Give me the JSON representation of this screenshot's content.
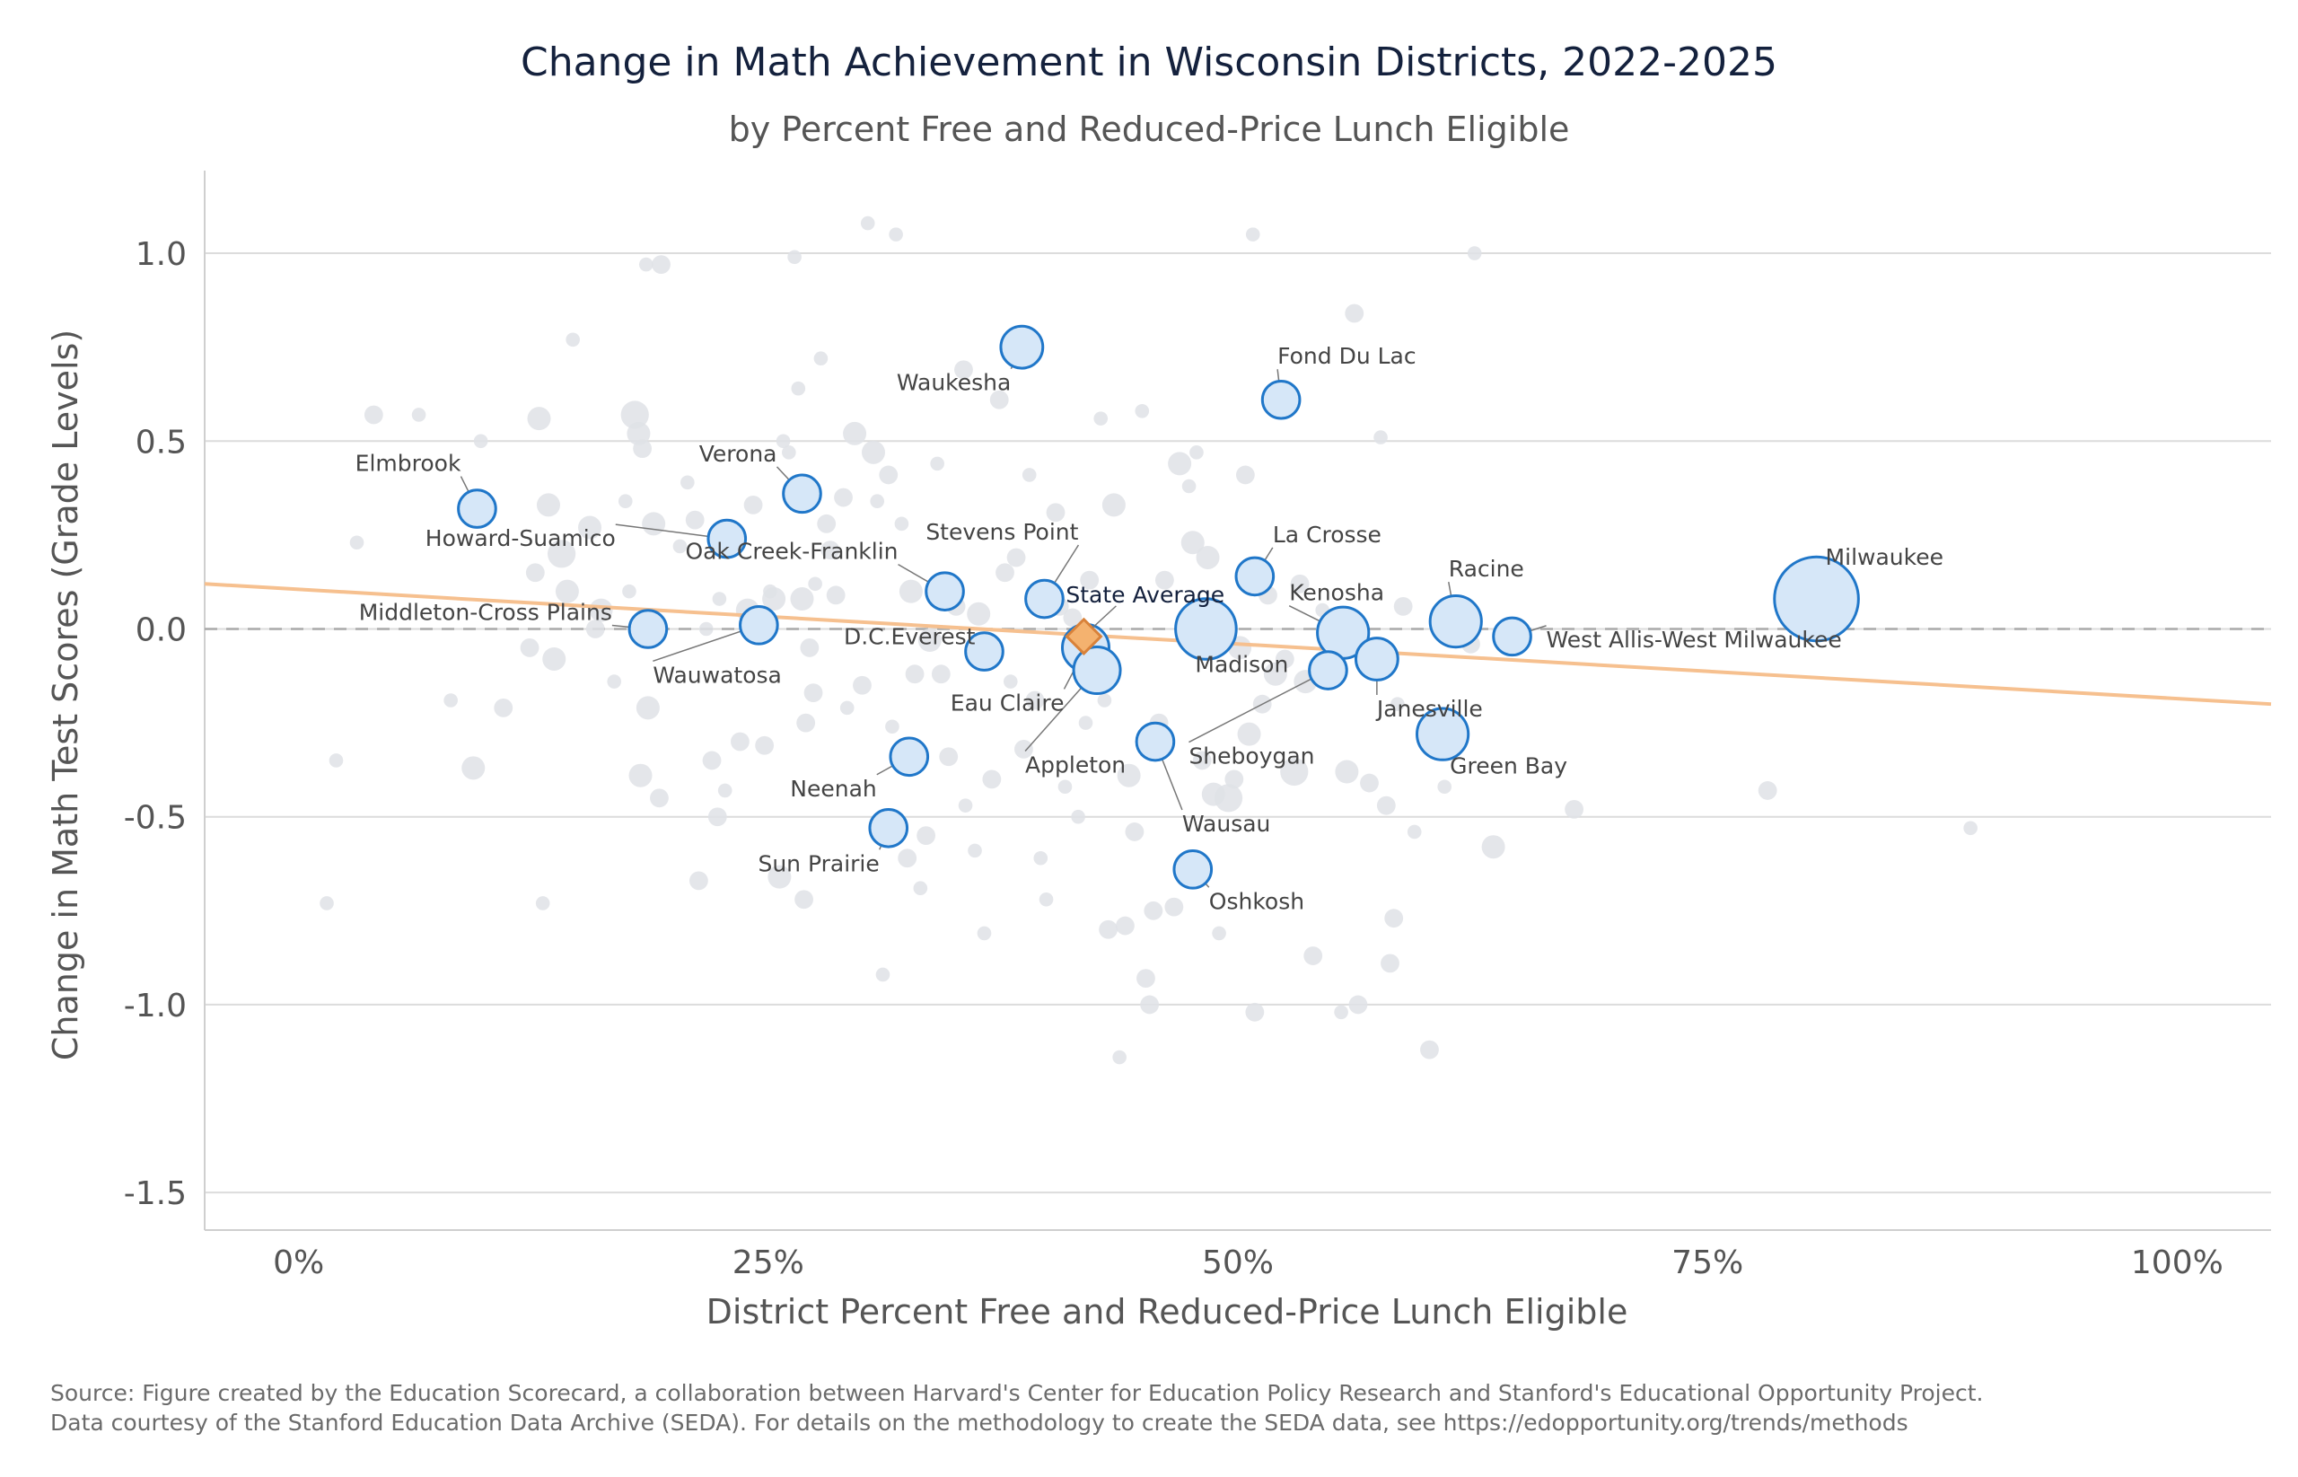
{
  "chart_data": {
    "type": "scatter",
    "title": "Change in Math Achievement in Wisconsin Districts, 2022-2025",
    "subtitle": "by Percent Free and Reduced-Price Lunch Eligible",
    "xlabel": "District Percent Free and Reduced-Price Lunch Eligible",
    "ylabel": "Change in Math Test Scores (Grade Levels)",
    "xlim": [
      -5,
      105
    ],
    "ylim": [
      -1.6,
      1.22
    ],
    "x_ticks": [
      0,
      25,
      50,
      75,
      100
    ],
    "x_tick_labels": [
      "0%",
      "25%",
      "50%",
      "75%",
      "100%"
    ],
    "y_ticks": [
      1.0,
      0.5,
      0.0,
      -0.5,
      -1.0,
      -1.5
    ],
    "y_tick_labels": [
      "1.0",
      "0.5",
      "0.0",
      "-0.5",
      "-1.0",
      "-1.5"
    ],
    "grid": true,
    "reference_line_y": 0.0,
    "trend_line": {
      "x": [
        -5,
        105
      ],
      "y": [
        0.12,
        -0.2
      ]
    },
    "state_average": {
      "label": "State Average",
      "x": 41.8,
      "y": -0.02
    },
    "labeled_districts": [
      {
        "name": "Milwaukee",
        "x": 80.8,
        "y": 0.08,
        "size": 18
      },
      {
        "name": "Waukesha",
        "x": 38.5,
        "y": 0.75,
        "size": 9
      },
      {
        "name": "Fond Du Lac",
        "x": 52.3,
        "y": 0.61,
        "size": 8
      },
      {
        "name": "Verona",
        "x": 26.8,
        "y": 0.36,
        "size": 8
      },
      {
        "name": "Elmbrook",
        "x": 9.5,
        "y": 0.32,
        "size": 8
      },
      {
        "name": "Howard-Suamico",
        "x": 22.8,
        "y": 0.24,
        "size": 8
      },
      {
        "name": "La Crosse",
        "x": 50.9,
        "y": 0.14,
        "size": 8
      },
      {
        "name": "Oak Creek-Franklin",
        "x": 34.4,
        "y": 0.1,
        "size": 8
      },
      {
        "name": "Stevens Point",
        "x": 39.7,
        "y": 0.08,
        "size": 8
      },
      {
        "name": "Racine",
        "x": 61.6,
        "y": 0.02,
        "size": 11
      },
      {
        "name": "Kenosha",
        "x": 55.6,
        "y": -0.01,
        "size": 11
      },
      {
        "name": "Madison",
        "x": 48.3,
        "y": 0.0,
        "size": 13
      },
      {
        "name": "West Allis-West Milwaukee",
        "x": 64.6,
        "y": -0.02,
        "size": 8
      },
      {
        "name": "Middleton-Cross Plains",
        "x": 18.6,
        "y": 0.0,
        "size": 8
      },
      {
        "name": "Wauwatosa",
        "x": 24.5,
        "y": 0.01,
        "size": 8
      },
      {
        "name": "D.C.Everest",
        "x": 36.5,
        "y": -0.06,
        "size": 8
      },
      {
        "name": "Eau Claire",
        "x": 41.9,
        "y": -0.05,
        "size": 10
      },
      {
        "name": "Appleton",
        "x": 42.5,
        "y": -0.11,
        "size": 10
      },
      {
        "name": "Janesville",
        "x": 57.4,
        "y": -0.08,
        "size": 9
      },
      {
        "name": "Sheboygan",
        "x": 54.8,
        "y": -0.11,
        "size": 8
      },
      {
        "name": "Green Bay",
        "x": 60.9,
        "y": -0.28,
        "size": 11
      },
      {
        "name": "Wausau",
        "x": 45.6,
        "y": -0.3,
        "size": 8
      },
      {
        "name": "Neenah",
        "x": 32.5,
        "y": -0.34,
        "size": 8
      },
      {
        "name": "Sun Prairie",
        "x": 31.4,
        "y": -0.53,
        "size": 8
      },
      {
        "name": "Oshkosh",
        "x": 47.6,
        "y": -0.64,
        "size": 8
      }
    ],
    "other_districts": [
      [
        2.0,
        -0.35,
        3
      ],
      [
        1.5,
        -0.73,
        3
      ],
      [
        3.1,
        0.23,
        3
      ],
      [
        4.0,
        0.57,
        4
      ],
      [
        6.4,
        0.57,
        3
      ],
      [
        8.1,
        -0.19,
        3
      ],
      [
        9.3,
        -0.37,
        5
      ],
      [
        9.7,
        0.5,
        3
      ],
      [
        10.9,
        -0.21,
        4
      ],
      [
        12.3,
        -0.05,
        4
      ],
      [
        12.8,
        0.56,
        5
      ],
      [
        12.6,
        0.15,
        4
      ],
      [
        13.0,
        -0.73,
        3
      ],
      [
        13.3,
        0.33,
        5
      ],
      [
        13.6,
        -0.08,
        5
      ],
      [
        14.0,
        0.2,
        6
      ],
      [
        14.3,
        0.1,
        5
      ],
      [
        14.6,
        0.77,
        3
      ],
      [
        15.5,
        0.27,
        5
      ],
      [
        15.8,
        0.0,
        4
      ],
      [
        16.1,
        0.05,
        5
      ],
      [
        16.8,
        -0.14,
        3
      ],
      [
        17.4,
        0.34,
        3
      ],
      [
        17.6,
        0.1,
        3
      ],
      [
        17.9,
        0.57,
        6
      ],
      [
        18.1,
        0.52,
        5
      ],
      [
        18.3,
        0.48,
        4
      ],
      [
        18.5,
        0.97,
        3
      ],
      [
        18.6,
        -0.21,
        5
      ],
      [
        18.9,
        0.28,
        5
      ],
      [
        19.3,
        0.97,
        4
      ],
      [
        19.2,
        -0.45,
        4
      ],
      [
        18.2,
        -0.39,
        5
      ],
      [
        20.3,
        0.22,
        3
      ],
      [
        20.7,
        0.39,
        3
      ],
      [
        21.1,
        0.29,
        4
      ],
      [
        21.3,
        -0.67,
        4
      ],
      [
        21.7,
        0.0,
        3
      ],
      [
        22.0,
        -0.35,
        4
      ],
      [
        22.4,
        0.08,
        3
      ],
      [
        22.3,
        -0.5,
        4
      ],
      [
        22.7,
        -0.43,
        3
      ],
      [
        23.5,
        -0.3,
        4
      ],
      [
        23.9,
        0.05,
        5
      ],
      [
        24.2,
        0.33,
        4
      ],
      [
        24.8,
        -0.31,
        4
      ],
      [
        25.1,
        0.1,
        3
      ],
      [
        25.3,
        0.08,
        5
      ],
      [
        25.6,
        -0.66,
        5
      ],
      [
        25.8,
        0.5,
        3
      ],
      [
        26.1,
        0.47,
        3
      ],
      [
        26.4,
        0.99,
        3
      ],
      [
        26.6,
        0.64,
        3
      ],
      [
        26.8,
        0.08,
        5
      ],
      [
        26.9,
        -0.72,
        4
      ],
      [
        27.2,
        -0.05,
        4
      ],
      [
        27.0,
        -0.25,
        4
      ],
      [
        27.5,
        0.12,
        3
      ],
      [
        27.4,
        -0.17,
        4
      ],
      [
        27.8,
        0.72,
        3
      ],
      [
        28.1,
        0.28,
        4
      ],
      [
        28.3,
        0.21,
        4
      ],
      [
        28.6,
        0.09,
        4
      ],
      [
        29.0,
        0.35,
        4
      ],
      [
        29.2,
        -0.21,
        3
      ],
      [
        29.6,
        0.52,
        5
      ],
      [
        30.0,
        -0.15,
        4
      ],
      [
        30.3,
        1.08,
        3
      ],
      [
        30.6,
        0.47,
        5
      ],
      [
        30.8,
        0.34,
        3
      ],
      [
        31.1,
        -0.92,
        3
      ],
      [
        31.4,
        0.41,
        4
      ],
      [
        31.6,
        -0.26,
        3
      ],
      [
        31.8,
        1.05,
        3
      ],
      [
        32.1,
        0.28,
        3
      ],
      [
        32.4,
        -0.61,
        4
      ],
      [
        32.6,
        0.1,
        5
      ],
      [
        32.8,
        -0.12,
        4
      ],
      [
        33.1,
        -0.69,
        3
      ],
      [
        33.4,
        -0.55,
        4
      ],
      [
        33.6,
        -0.03,
        5
      ],
      [
        34.0,
        0.44,
        3
      ],
      [
        34.2,
        -0.12,
        4
      ],
      [
        34.6,
        -0.34,
        4
      ],
      [
        35.0,
        0.06,
        4
      ],
      [
        35.4,
        0.69,
        4
      ],
      [
        35.5,
        -0.47,
        3
      ],
      [
        36.0,
        -0.59,
        3
      ],
      [
        36.2,
        0.04,
        5
      ],
      [
        36.5,
        -0.81,
        3
      ],
      [
        36.9,
        -0.4,
        4
      ],
      [
        37.3,
        0.61,
        4
      ],
      [
        37.6,
        0.15,
        4
      ],
      [
        37.9,
        -0.14,
        3
      ],
      [
        38.2,
        0.19,
        4
      ],
      [
        38.6,
        -0.32,
        4
      ],
      [
        38.9,
        0.41,
        3
      ],
      [
        39.2,
        -0.19,
        4
      ],
      [
        39.5,
        -0.61,
        3
      ],
      [
        39.8,
        -0.72,
        3
      ],
      [
        40.3,
        0.31,
        4
      ],
      [
        40.5,
        0.06,
        4
      ],
      [
        40.8,
        -0.42,
        3
      ],
      [
        41.2,
        0.03,
        4
      ],
      [
        41.5,
        -0.5,
        3
      ],
      [
        41.9,
        -0.25,
        3
      ],
      [
        42.1,
        0.13,
        4
      ],
      [
        42.4,
        -0.11,
        4
      ],
      [
        42.7,
        0.56,
        3
      ],
      [
        42.9,
        -0.19,
        3
      ],
      [
        43.1,
        -0.8,
        4
      ],
      [
        43.4,
        0.33,
        5
      ],
      [
        43.7,
        -1.14,
        3
      ],
      [
        44.0,
        -0.79,
        4
      ],
      [
        44.2,
        -0.39,
        5
      ],
      [
        44.5,
        -0.54,
        4
      ],
      [
        44.9,
        0.58,
        3
      ],
      [
        45.1,
        -0.93,
        4
      ],
      [
        45.3,
        -1.0,
        4
      ],
      [
        45.5,
        -0.75,
        4
      ],
      [
        45.8,
        -0.25,
        4
      ],
      [
        46.1,
        0.13,
        4
      ],
      [
        46.6,
        -0.74,
        4
      ],
      [
        46.9,
        0.44,
        5
      ],
      [
        47.2,
        -0.65,
        3
      ],
      [
        47.4,
        0.38,
        3
      ],
      [
        47.6,
        0.23,
        5
      ],
      [
        47.8,
        0.47,
        3
      ],
      [
        48.1,
        -0.35,
        4
      ],
      [
        48.4,
        0.19,
        5
      ],
      [
        48.7,
        -0.44,
        5
      ],
      [
        49.0,
        -0.81,
        3
      ],
      [
        49.5,
        -0.45,
        6
      ],
      [
        49.8,
        -0.4,
        4
      ],
      [
        50.1,
        -0.05,
        5
      ],
      [
        50.4,
        0.41,
        4
      ],
      [
        50.6,
        -0.28,
        5
      ],
      [
        50.8,
        1.05,
        3
      ],
      [
        50.9,
        -1.02,
        4
      ],
      [
        51.3,
        -0.2,
        4
      ],
      [
        51.6,
        0.09,
        4
      ],
      [
        52.0,
        -0.12,
        5
      ],
      [
        52.5,
        -0.08,
        4
      ],
      [
        53.0,
        -0.38,
        6
      ],
      [
        53.3,
        0.12,
        4
      ],
      [
        53.6,
        -0.14,
        5
      ],
      [
        54.0,
        -0.87,
        4
      ],
      [
        54.5,
        0.05,
        3
      ],
      [
        55.0,
        -0.05,
        4
      ],
      [
        55.5,
        -1.02,
        3
      ],
      [
        55.8,
        -0.38,
        5
      ],
      [
        56.2,
        0.84,
        4
      ],
      [
        56.4,
        -1.0,
        4
      ],
      [
        57.0,
        -0.41,
        4
      ],
      [
        57.6,
        0.51,
        3
      ],
      [
        57.9,
        -0.47,
        4
      ],
      [
        58.1,
        -0.89,
        4
      ],
      [
        58.3,
        -0.77,
        4
      ],
      [
        58.5,
        -0.2,
        3
      ],
      [
        58.8,
        0.06,
        4
      ],
      [
        59.4,
        -0.54,
        3
      ],
      [
        60.2,
        -1.12,
        4
      ],
      [
        61.0,
        -0.42,
        3
      ],
      [
        61.3,
        0.03,
        4
      ],
      [
        62.4,
        -0.04,
        4
      ],
      [
        62.6,
        1.0,
        3
      ],
      [
        63.6,
        -0.58,
        5
      ],
      [
        67.9,
        -0.48,
        4
      ],
      [
        78.2,
        -0.43,
        4
      ],
      [
        79.7,
        0.13,
        6
      ],
      [
        89.0,
        -0.53,
        3
      ]
    ]
  },
  "source": {
    "line1": "Source: Figure created by the Education Scorecard, a collaboration between Harvard's Center for Education Policy Research and Stanford's Educational Opportunity Project.",
    "line2": "Data courtesy of the Stanford Education Data Archive (SEDA). For details on the methodology to create the SEDA data, see https://edopportunity.org/trends/methods"
  },
  "colors": {
    "highlight_stroke": "#2077c9",
    "highlight_fill": "#d6e7f8",
    "background_point": "#dfe2e6",
    "trend_line": "#f6c08f",
    "state_average_fill": "#f4b26f",
    "state_average_stroke": "#d9823a",
    "grid": "#dcdcdc",
    "reference_line": "#a9a9a9"
  }
}
